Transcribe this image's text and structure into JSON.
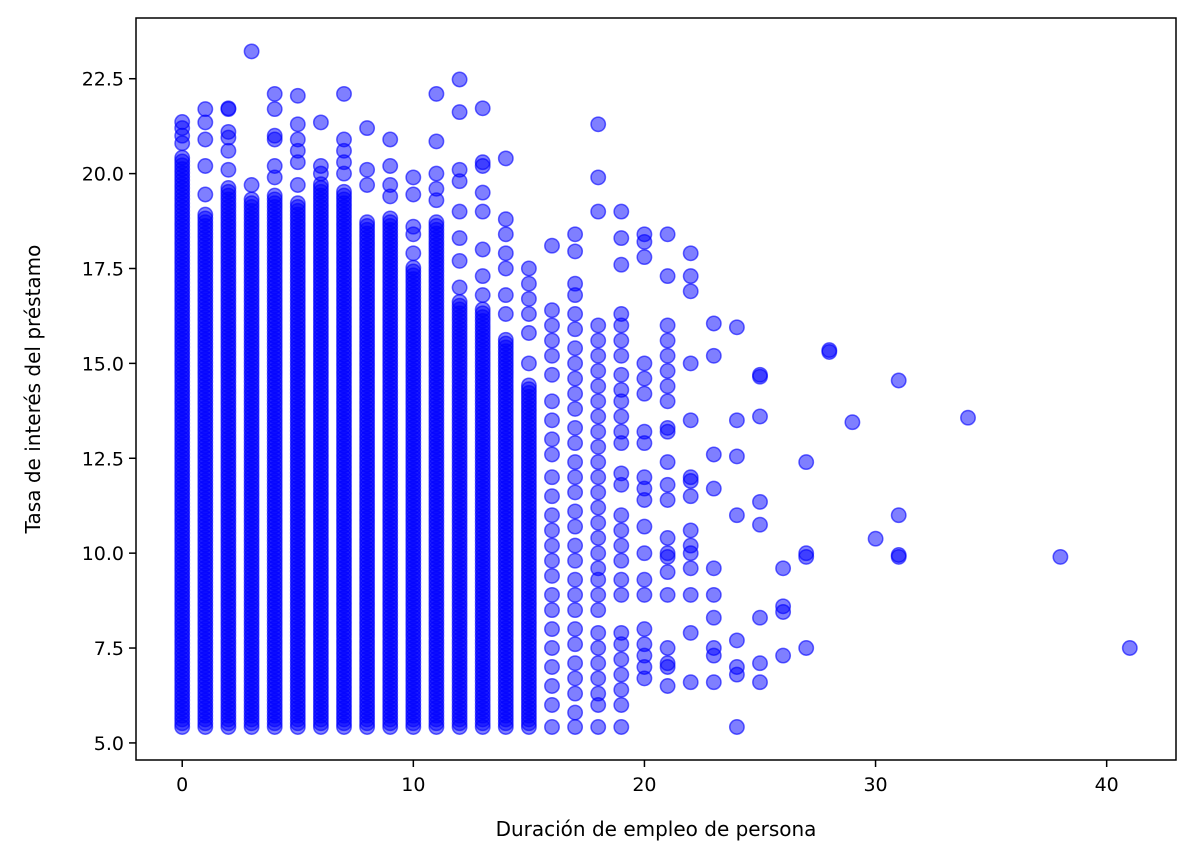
{
  "chart_data": {
    "type": "scatter",
    "title": "",
    "xlabel": "Duración de empleo de persona",
    "ylabel": "Tasa de interés del préstamo",
    "xlim": [
      -2,
      43
    ],
    "ylim": [
      4.55,
      24.1
    ],
    "xticks": [
      0,
      10,
      20,
      30,
      40
    ],
    "yticks": [
      5.0,
      7.5,
      10.0,
      12.5,
      15.0,
      17.5,
      20.0,
      22.5
    ],
    "ytick_labels": [
      "5.0",
      "7.5",
      "10.0",
      "12.5",
      "15.0",
      "17.5",
      "20.0",
      "22.5"
    ],
    "grid": false,
    "marker_color": "#0000ff",
    "marker_alpha": 0.5,
    "dense_columns": [
      {
        "x": 0,
        "y_min": 5.42,
        "y_max": 20.5
      },
      {
        "x": 1,
        "y_min": 5.42,
        "y_max": 19.0
      },
      {
        "x": 2,
        "y_min": 5.42,
        "y_max": 19.7
      },
      {
        "x": 3,
        "y_min": 5.42,
        "y_max": 19.4
      },
      {
        "x": 4,
        "y_min": 5.42,
        "y_max": 19.5
      },
      {
        "x": 5,
        "y_min": 5.42,
        "y_max": 19.3
      },
      {
        "x": 6,
        "y_min": 5.42,
        "y_max": 19.8
      },
      {
        "x": 7,
        "y_min": 5.42,
        "y_max": 19.6
      },
      {
        "x": 8,
        "y_min": 5.42,
        "y_max": 18.8
      },
      {
        "x": 9,
        "y_min": 5.42,
        "y_max": 18.9
      },
      {
        "x": 10,
        "y_min": 5.42,
        "y_max": 17.6
      },
      {
        "x": 11,
        "y_min": 5.42,
        "y_max": 18.8
      },
      {
        "x": 12,
        "y_min": 5.42,
        "y_max": 16.7
      },
      {
        "x": 13,
        "y_min": 5.42,
        "y_max": 16.5
      },
      {
        "x": 14,
        "y_min": 5.42,
        "y_max": 15.7
      },
      {
        "x": 15,
        "y_min": 5.42,
        "y_max": 14.5
      }
    ],
    "points": [
      [
        0,
        21.36
      ],
      [
        0,
        21.2
      ],
      [
        0,
        21.0
      ],
      [
        0,
        20.8
      ],
      [
        1,
        21.7
      ],
      [
        1,
        21.35
      ],
      [
        1,
        20.9
      ],
      [
        1,
        20.2
      ],
      [
        1,
        19.45
      ],
      [
        2,
        21.72
      ],
      [
        2,
        21.7
      ],
      [
        2,
        21.1
      ],
      [
        2,
        20.95
      ],
      [
        2,
        20.6
      ],
      [
        2,
        20.1
      ],
      [
        3,
        23.22
      ],
      [
        3,
        19.7
      ],
      [
        4,
        22.1
      ],
      [
        4,
        21.7
      ],
      [
        4,
        21.0
      ],
      [
        4,
        20.9
      ],
      [
        4,
        20.2
      ],
      [
        4,
        19.9
      ],
      [
        5,
        22.05
      ],
      [
        5,
        21.3
      ],
      [
        5,
        20.9
      ],
      [
        5,
        20.6
      ],
      [
        5,
        20.3
      ],
      [
        5,
        19.7
      ],
      [
        6,
        21.35
      ],
      [
        6,
        20.2
      ],
      [
        6,
        20.0
      ],
      [
        7,
        22.1
      ],
      [
        7,
        20.9
      ],
      [
        7,
        20.6
      ],
      [
        7,
        20.3
      ],
      [
        7,
        20.0
      ],
      [
        8,
        21.2
      ],
      [
        8,
        20.1
      ],
      [
        8,
        19.7
      ],
      [
        9,
        20.9
      ],
      [
        9,
        20.2
      ],
      [
        9,
        19.7
      ],
      [
        9,
        19.4
      ],
      [
        10,
        19.9
      ],
      [
        10,
        19.45
      ],
      [
        10,
        18.6
      ],
      [
        10,
        18.4
      ],
      [
        10,
        17.9
      ],
      [
        11,
        22.1
      ],
      [
        11,
        20.85
      ],
      [
        11,
        20.0
      ],
      [
        11,
        19.6
      ],
      [
        11,
        19.3
      ],
      [
        12,
        22.48
      ],
      [
        12,
        21.62
      ],
      [
        12,
        20.1
      ],
      [
        12,
        19.8
      ],
      [
        12,
        19.0
      ],
      [
        12,
        18.3
      ],
      [
        12,
        17.7
      ],
      [
        12,
        17.0
      ],
      [
        13,
        21.72
      ],
      [
        13,
        20.3
      ],
      [
        13,
        20.2
      ],
      [
        13,
        19.5
      ],
      [
        13,
        19.0
      ],
      [
        13,
        18.0
      ],
      [
        13,
        17.3
      ],
      [
        13,
        16.8
      ],
      [
        14,
        20.4
      ],
      [
        14,
        18.8
      ],
      [
        14,
        18.4
      ],
      [
        14,
        17.9
      ],
      [
        14,
        17.5
      ],
      [
        14,
        16.8
      ],
      [
        14,
        16.3
      ],
      [
        15,
        17.5
      ],
      [
        15,
        17.1
      ],
      [
        15,
        16.7
      ],
      [
        15,
        16.3
      ],
      [
        15,
        15.8
      ],
      [
        15,
        15.0
      ],
      [
        16,
        18.1
      ],
      [
        16,
        16.4
      ],
      [
        16,
        16.0
      ],
      [
        16,
        15.6
      ],
      [
        16,
        15.2
      ],
      [
        16,
        14.7
      ],
      [
        16,
        14.0
      ],
      [
        16,
        13.5
      ],
      [
        16,
        13.0
      ],
      [
        16,
        12.6
      ],
      [
        16,
        12.0
      ],
      [
        16,
        11.5
      ],
      [
        16,
        11.0
      ],
      [
        16,
        10.6
      ],
      [
        16,
        10.2
      ],
      [
        16,
        9.8
      ],
      [
        16,
        9.4
      ],
      [
        16,
        8.9
      ],
      [
        16,
        8.5
      ],
      [
        16,
        8.0
      ],
      [
        16,
        7.5
      ],
      [
        16,
        7.0
      ],
      [
        16,
        6.5
      ],
      [
        16,
        6.0
      ],
      [
        16,
        5.42
      ],
      [
        17,
        18.4
      ],
      [
        17,
        17.95
      ],
      [
        17,
        17.1
      ],
      [
        17,
        16.8
      ],
      [
        17,
        16.3
      ],
      [
        17,
        15.9
      ],
      [
        17,
        15.4
      ],
      [
        17,
        15.0
      ],
      [
        17,
        14.6
      ],
      [
        17,
        14.2
      ],
      [
        17,
        13.8
      ],
      [
        17,
        13.3
      ],
      [
        17,
        12.9
      ],
      [
        17,
        12.4
      ],
      [
        17,
        12.0
      ],
      [
        17,
        11.6
      ],
      [
        17,
        11.1
      ],
      [
        17,
        10.7
      ],
      [
        17,
        10.2
      ],
      [
        17,
        9.8
      ],
      [
        17,
        9.3
      ],
      [
        17,
        8.9
      ],
      [
        17,
        8.5
      ],
      [
        17,
        8.0
      ],
      [
        17,
        7.6
      ],
      [
        17,
        7.1
      ],
      [
        17,
        6.7
      ],
      [
        17,
        6.3
      ],
      [
        17,
        5.8
      ],
      [
        17,
        5.42
      ],
      [
        18,
        21.3
      ],
      [
        18,
        19.9
      ],
      [
        18,
        19.0
      ],
      [
        18,
        16.0
      ],
      [
        18,
        15.6
      ],
      [
        18,
        15.2
      ],
      [
        18,
        14.8
      ],
      [
        18,
        14.4
      ],
      [
        18,
        14.0
      ],
      [
        18,
        13.6
      ],
      [
        18,
        13.2
      ],
      [
        18,
        12.8
      ],
      [
        18,
        12.4
      ],
      [
        18,
        12.0
      ],
      [
        18,
        11.6
      ],
      [
        18,
        11.2
      ],
      [
        18,
        10.8
      ],
      [
        18,
        10.4
      ],
      [
        18,
        10.0
      ],
      [
        18,
        9.6
      ],
      [
        18,
        9.3
      ],
      [
        18,
        8.9
      ],
      [
        18,
        8.5
      ],
      [
        18,
        7.9
      ],
      [
        18,
        7.5
      ],
      [
        18,
        7.1
      ],
      [
        18,
        6.7
      ],
      [
        18,
        6.3
      ],
      [
        18,
        6.0
      ],
      [
        18,
        5.42
      ],
      [
        19,
        19.0
      ],
      [
        19,
        18.3
      ],
      [
        19,
        17.6
      ],
      [
        19,
        16.3
      ],
      [
        19,
        16.0
      ],
      [
        19,
        15.6
      ],
      [
        19,
        15.2
      ],
      [
        19,
        14.7
      ],
      [
        19,
        14.3
      ],
      [
        19,
        14.0
      ],
      [
        19,
        13.6
      ],
      [
        19,
        13.2
      ],
      [
        19,
        12.9
      ],
      [
        19,
        12.1
      ],
      [
        19,
        11.8
      ],
      [
        19,
        11.0
      ],
      [
        19,
        10.6
      ],
      [
        19,
        10.2
      ],
      [
        19,
        9.8
      ],
      [
        19,
        9.3
      ],
      [
        19,
        8.9
      ],
      [
        19,
        7.9
      ],
      [
        19,
        7.6
      ],
      [
        19,
        7.2
      ],
      [
        19,
        6.8
      ],
      [
        19,
        6.4
      ],
      [
        19,
        6.0
      ],
      [
        19,
        5.42
      ],
      [
        20,
        18.4
      ],
      [
        20,
        18.2
      ],
      [
        20,
        17.8
      ],
      [
        20,
        15.0
      ],
      [
        20,
        14.6
      ],
      [
        20,
        14.2
      ],
      [
        20,
        13.2
      ],
      [
        20,
        12.9
      ],
      [
        20,
        12.0
      ],
      [
        20,
        11.7
      ],
      [
        20,
        11.4
      ],
      [
        20,
        10.7
      ],
      [
        20,
        10.0
      ],
      [
        20,
        9.3
      ],
      [
        20,
        8.9
      ],
      [
        20,
        8.0
      ],
      [
        20,
        7.6
      ],
      [
        20,
        7.3
      ],
      [
        20,
        7.0
      ],
      [
        20,
        6.7
      ],
      [
        21,
        18.4
      ],
      [
        21,
        17.3
      ],
      [
        21,
        16.0
      ],
      [
        21,
        15.6
      ],
      [
        21,
        15.2
      ],
      [
        21,
        14.8
      ],
      [
        21,
        14.4
      ],
      [
        21,
        14.0
      ],
      [
        21,
        13.3
      ],
      [
        21,
        13.2
      ],
      [
        21,
        12.4
      ],
      [
        21,
        11.8
      ],
      [
        21,
        11.4
      ],
      [
        21,
        10.4
      ],
      [
        21,
        10.0
      ],
      [
        21,
        9.9
      ],
      [
        21,
        9.5
      ],
      [
        21,
        8.9
      ],
      [
        21,
        7.5
      ],
      [
        21,
        7.1
      ],
      [
        21,
        7.0
      ],
      [
        21,
        6.5
      ],
      [
        22,
        17.9
      ],
      [
        22,
        17.3
      ],
      [
        22,
        16.9
      ],
      [
        22,
        15.0
      ],
      [
        22,
        13.5
      ],
      [
        22,
        12.0
      ],
      [
        22,
        11.9
      ],
      [
        22,
        11.5
      ],
      [
        22,
        10.6
      ],
      [
        22,
        10.2
      ],
      [
        22,
        10.0
      ],
      [
        22,
        9.6
      ],
      [
        22,
        8.9
      ],
      [
        22,
        7.9
      ],
      [
        22,
        6.6
      ],
      [
        23,
        16.05
      ],
      [
        23,
        15.2
      ],
      [
        23,
        12.6
      ],
      [
        23,
        11.7
      ],
      [
        23,
        9.6
      ],
      [
        23,
        8.9
      ],
      [
        23,
        8.3
      ],
      [
        23,
        7.5
      ],
      [
        23,
        7.3
      ],
      [
        23,
        6.6
      ],
      [
        24,
        15.95
      ],
      [
        24,
        13.5
      ],
      [
        24,
        12.55
      ],
      [
        24,
        11.0
      ],
      [
        24,
        7.7
      ],
      [
        24,
        7.0
      ],
      [
        24,
        6.8
      ],
      [
        24,
        5.42
      ],
      [
        25,
        14.7
      ],
      [
        25,
        14.65
      ],
      [
        25,
        13.6
      ],
      [
        25,
        11.35
      ],
      [
        25,
        10.75
      ],
      [
        25,
        8.3
      ],
      [
        25,
        7.1
      ],
      [
        25,
        6.6
      ],
      [
        26,
        9.6
      ],
      [
        26,
        8.6
      ],
      [
        26,
        8.45
      ],
      [
        26,
        7.3
      ],
      [
        27,
        12.4
      ],
      [
        27,
        10.0
      ],
      [
        27,
        9.9
      ],
      [
        27,
        7.5
      ],
      [
        28,
        15.35
      ],
      [
        28,
        15.3
      ],
      [
        29,
        13.45
      ],
      [
        30,
        10.38
      ],
      [
        31,
        14.55
      ],
      [
        31,
        11.0
      ],
      [
        31,
        9.95
      ],
      [
        31,
        9.9
      ],
      [
        34,
        13.57
      ],
      [
        38,
        9.9
      ],
      [
        41,
        7.5
      ]
    ]
  }
}
